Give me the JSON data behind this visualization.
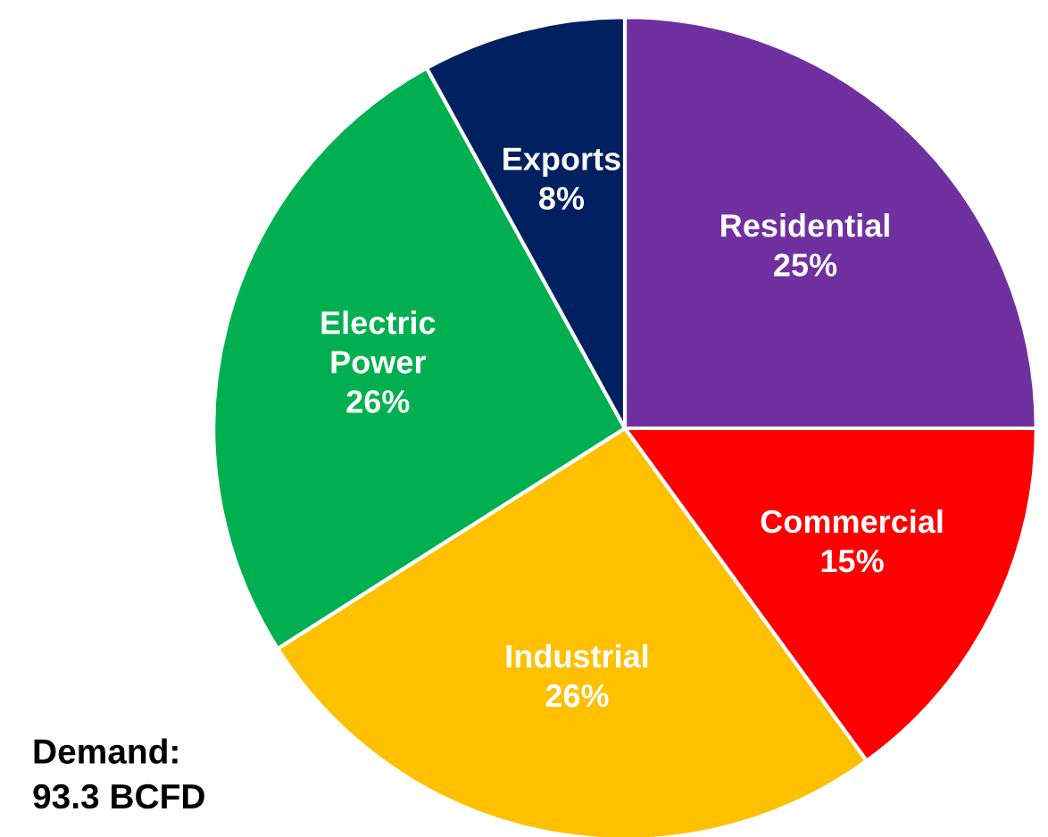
{
  "chart_data": {
    "type": "pie",
    "categories": [
      "Residential",
      "Commercial",
      "Industrial",
      "Electric Power",
      "Exports"
    ],
    "values": [
      25,
      15,
      26,
      26,
      8
    ],
    "value_labels": [
      "25%",
      "15%",
      "26%",
      "26%",
      "8%"
    ],
    "colors": [
      "#7030a0",
      "#ff0000",
      "#ffc000",
      "#00b050",
      "#002060"
    ],
    "legend": false,
    "annotations": [
      "Demand:\n93.3 BCFD"
    ]
  }
}
